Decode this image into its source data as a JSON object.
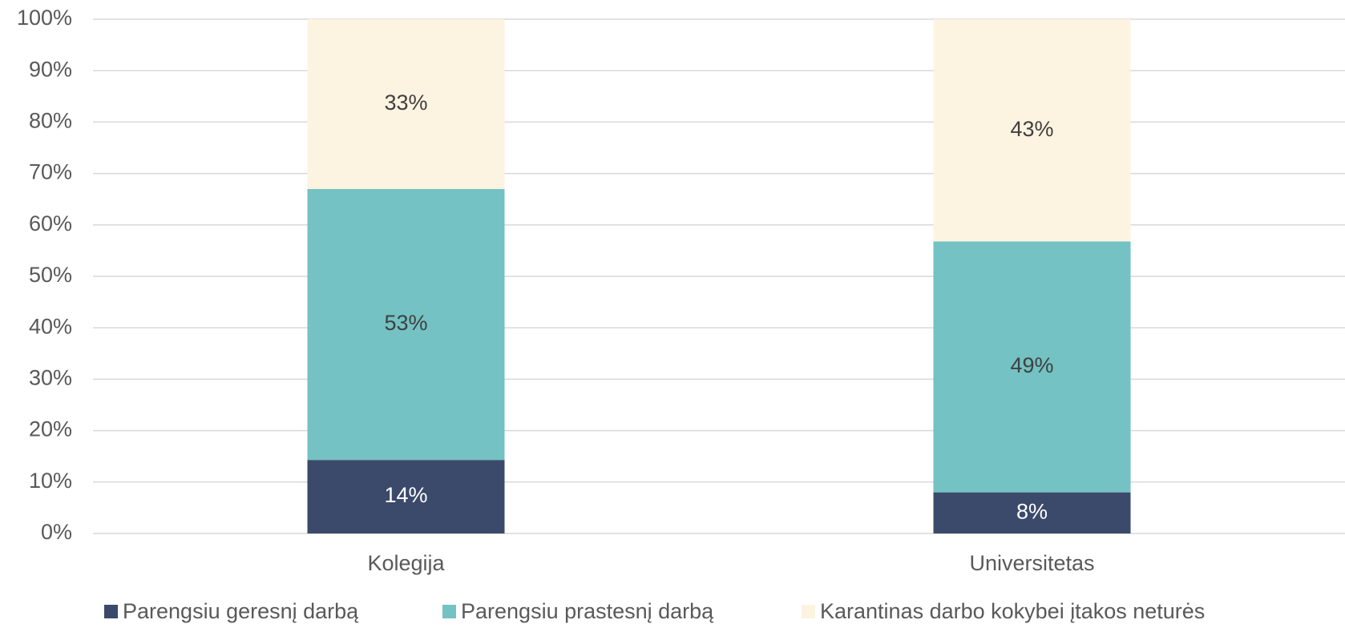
{
  "chart_data": {
    "type": "stacked_bar",
    "categories": [
      "Kolegija",
      "Universitetas"
    ],
    "series": [
      {
        "name": "Parengsiu geresnį darbą",
        "color": "#3b4a6b",
        "label_color": "#ffffff",
        "values": [
          14.3,
          8.0
        ],
        "value_labels": [
          "14%",
          "8%"
        ]
      },
      {
        "name": "Parengsiu prastesnį darbą",
        "color": "#74c2c3",
        "label_color": "#404040",
        "values": [
          52.7,
          48.8
        ],
        "value_labels": [
          "53%",
          "49%"
        ]
      },
      {
        "name": "Karantinas darbo kokybei įtakos neturės",
        "color": "#fdf3e1",
        "label_color": "#404040",
        "values": [
          33.0,
          43.2
        ],
        "value_labels": [
          "33%",
          "43%"
        ]
      }
    ],
    "ylim": [
      0,
      100
    ],
    "yticks": [
      {
        "value": 0,
        "label": "0%"
      },
      {
        "value": 10,
        "label": "10%"
      },
      {
        "value": 20,
        "label": "20%"
      },
      {
        "value": 30,
        "label": "30%"
      },
      {
        "value": 40,
        "label": "40%"
      },
      {
        "value": 50,
        "label": "50%"
      },
      {
        "value": 60,
        "label": "60%"
      },
      {
        "value": 70,
        "label": "70%"
      },
      {
        "value": 80,
        "label": "80%"
      },
      {
        "value": 90,
        "label": "90%"
      },
      {
        "value": 100,
        "label": "100%"
      }
    ],
    "grid": true,
    "legend": "bottom"
  }
}
